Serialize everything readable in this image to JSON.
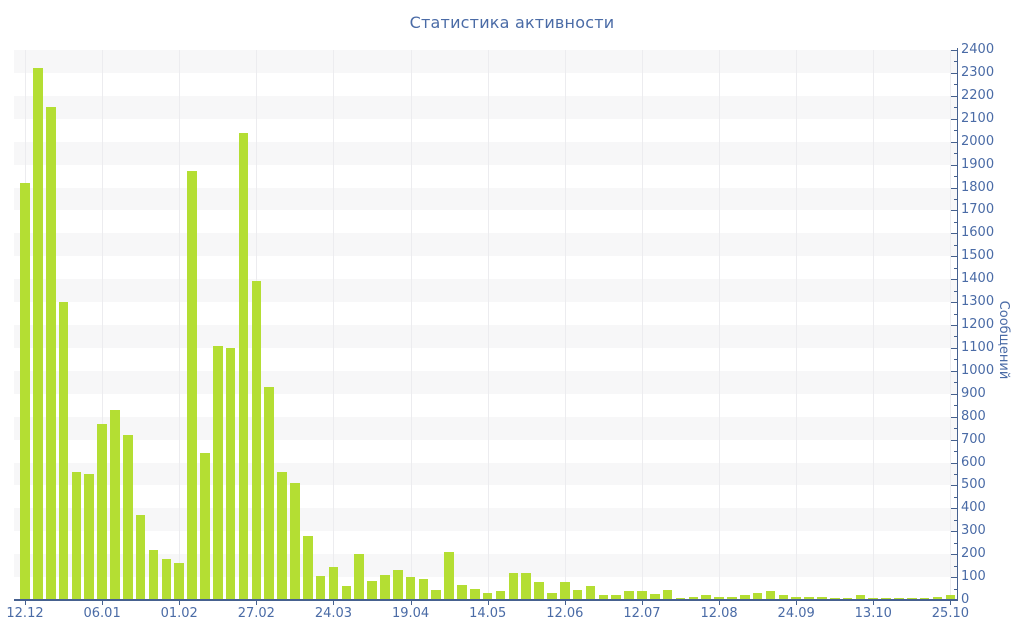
{
  "title": "Статистика активности",
  "colors": {
    "accent_text": "#4a6ba6",
    "axis_line": "#46618f",
    "bar": "#b4de33",
    "band_gray": "#f7f7f8",
    "band_white": "#ffffff",
    "vgrid": "#ececef"
  },
  "chart_data": {
    "type": "bar",
    "title": "Статистика активности",
    "xlabel": "",
    "ylabel": "Сообщений",
    "ylim": [
      0,
      2400
    ],
    "y_major_tick_step": 100,
    "y_minor_tick_step": 50,
    "y_axis_side": "right",
    "grid": "horizontal-bands-and-faint-vertical-lines",
    "legend_position": "none",
    "bar_count": 73,
    "x_tick_every_n_bars": 6,
    "x_tick_labels": [
      "12.12",
      "06.01",
      "01.02",
      "27.02",
      "24.03",
      "19.04",
      "14.05",
      "12.06",
      "12.07",
      "12.08",
      "24.09",
      "13.10",
      "25.10"
    ],
    "values": [
      1820,
      2320,
      2150,
      1300,
      560,
      550,
      770,
      830,
      720,
      370,
      220,
      180,
      160,
      1870,
      640,
      1110,
      1100,
      2040,
      1390,
      930,
      560,
      510,
      280,
      105,
      145,
      60,
      200,
      85,
      110,
      130,
      100,
      90,
      45,
      210,
      65,
      50,
      30,
      40,
      120,
      120,
      80,
      30,
      80,
      45,
      60,
      20,
      20,
      40,
      40,
      25,
      45,
      10,
      15,
      20,
      15,
      12,
      23,
      32,
      38,
      20,
      12,
      15,
      15,
      9,
      9,
      23,
      9,
      9,
      9,
      9,
      9,
      15,
      20
    ]
  }
}
